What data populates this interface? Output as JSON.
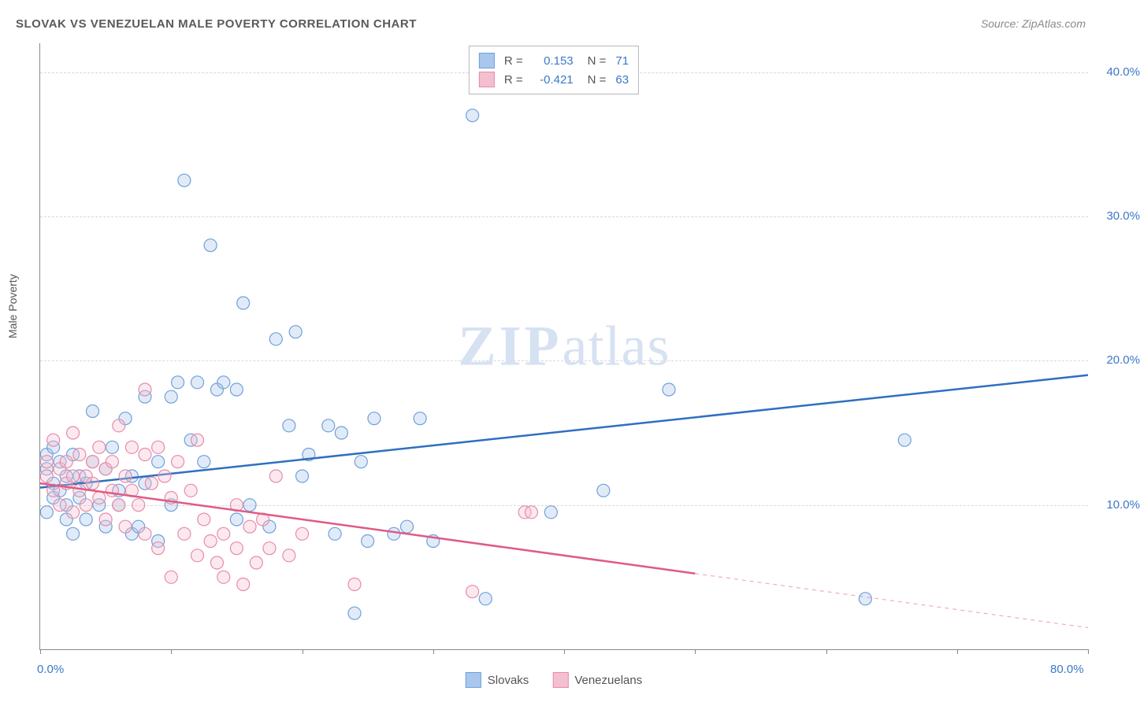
{
  "title": "SLOVAK VS VENEZUELAN MALE POVERTY CORRELATION CHART",
  "source": "Source: ZipAtlas.com",
  "ylabel": "Male Poverty",
  "watermark_zip": "ZIP",
  "watermark_atlas": "atlas",
  "chart": {
    "type": "scatter",
    "background_color": "#ffffff",
    "grid_color": "#d8d8d8",
    "axis_color": "#888888",
    "tick_label_color": "#3b78c9",
    "text_color": "#555555",
    "title_color": "#5a5a5a",
    "title_fontsize": 15,
    "label_fontsize": 14,
    "tick_fontsize": 15,
    "xlim": [
      0,
      80
    ],
    "ylim": [
      0,
      42
    ],
    "x_ticks": [
      0,
      10,
      20,
      30,
      40,
      50,
      60,
      70,
      80
    ],
    "x_tick_labels": {
      "0": "0.0%",
      "80": "80.0%"
    },
    "y_gridlines": [
      10,
      20,
      30,
      40
    ],
    "y_tick_labels": {
      "10": "10.0%",
      "20": "20.0%",
      "30": "30.0%",
      "40": "40.0%"
    },
    "marker_radius": 8,
    "marker_fill_opacity": 0.35,
    "marker_stroke_width": 1.2,
    "trend_line_width": 2.5,
    "series": [
      {
        "name": "Slovaks",
        "color_fill": "#a9c7ec",
        "color_stroke": "#6ea0db",
        "trend_color": "#2f6fc1",
        "r_value": "0.153",
        "n_value": "71",
        "trend": {
          "x1": 0,
          "y1": 11.2,
          "x2": 80,
          "y2": 19.0,
          "solid_to_x": 80
        },
        "points": [
          [
            0.5,
            13.5
          ],
          [
            0.5,
            12.5
          ],
          [
            0.5,
            9.5
          ],
          [
            1,
            14
          ],
          [
            1,
            11.5
          ],
          [
            1,
            10.5
          ],
          [
            1.5,
            11
          ],
          [
            1.5,
            13
          ],
          [
            2,
            10
          ],
          [
            2,
            9
          ],
          [
            2,
            12
          ],
          [
            2.5,
            13.5
          ],
          [
            2.5,
            8
          ],
          [
            3,
            12
          ],
          [
            3,
            10.5
          ],
          [
            3.5,
            11.5
          ],
          [
            3.5,
            9
          ],
          [
            4,
            13
          ],
          [
            4,
            16.5
          ],
          [
            4.5,
            10
          ],
          [
            5,
            12.5
          ],
          [
            5,
            8.5
          ],
          [
            5.5,
            14
          ],
          [
            6,
            11
          ],
          [
            6,
            10
          ],
          [
            6.5,
            16
          ],
          [
            7,
            12
          ],
          [
            7,
            8
          ],
          [
            7.5,
            8.5
          ],
          [
            8,
            11.5
          ],
          [
            8,
            17.5
          ],
          [
            9,
            7.5
          ],
          [
            9,
            13
          ],
          [
            10,
            17.5
          ],
          [
            10,
            10
          ],
          [
            10.5,
            18.5
          ],
          [
            11,
            32.5
          ],
          [
            11.5,
            14.5
          ],
          [
            12,
            18.5
          ],
          [
            12.5,
            13
          ],
          [
            13,
            28
          ],
          [
            13.5,
            18
          ],
          [
            14,
            18.5
          ],
          [
            15,
            9
          ],
          [
            15,
            18
          ],
          [
            15.5,
            24
          ],
          [
            16,
            10
          ],
          [
            17.5,
            8.5
          ],
          [
            18,
            21.5
          ],
          [
            19,
            15.5
          ],
          [
            19.5,
            22
          ],
          [
            20,
            12
          ],
          [
            20.5,
            13.5
          ],
          [
            22,
            15.5
          ],
          [
            22.5,
            8
          ],
          [
            23,
            15
          ],
          [
            24,
            2.5
          ],
          [
            24.5,
            13
          ],
          [
            25,
            7.5
          ],
          [
            25.5,
            16
          ],
          [
            27,
            8
          ],
          [
            28,
            8.5
          ],
          [
            29,
            16
          ],
          [
            30,
            7.5
          ],
          [
            33,
            37
          ],
          [
            34,
            3.5
          ],
          [
            39,
            9.5
          ],
          [
            48,
            18
          ],
          [
            63,
            3.5
          ],
          [
            66,
            14.5
          ],
          [
            43,
            11
          ]
        ]
      },
      {
        "name": "Venezuelans",
        "color_fill": "#f4bfd0",
        "color_stroke": "#e88ba8",
        "trend_color": "#e05a84",
        "r_value": "-0.421",
        "n_value": "63",
        "trend": {
          "x1": 0,
          "y1": 11.5,
          "x2": 80,
          "y2": 1.5,
          "solid_to_x": 50
        },
        "points": [
          [
            0.5,
            12
          ],
          [
            0.5,
            13
          ],
          [
            1,
            14.5
          ],
          [
            1,
            11
          ],
          [
            1.5,
            12.5
          ],
          [
            1.5,
            10
          ],
          [
            2,
            13
          ],
          [
            2,
            11.5
          ],
          [
            2.5,
            15
          ],
          [
            2.5,
            12
          ],
          [
            2.5,
            9.5
          ],
          [
            3,
            13.5
          ],
          [
            3,
            11
          ],
          [
            3.5,
            12
          ],
          [
            3.5,
            10
          ],
          [
            4,
            13
          ],
          [
            4,
            11.5
          ],
          [
            4.5,
            14
          ],
          [
            4.5,
            10.5
          ],
          [
            5,
            12.5
          ],
          [
            5,
            9
          ],
          [
            5.5,
            13
          ],
          [
            5.5,
            11
          ],
          [
            6,
            15.5
          ],
          [
            6,
            10
          ],
          [
            6.5,
            12
          ],
          [
            6.5,
            8.5
          ],
          [
            7,
            14
          ],
          [
            7,
            11
          ],
          [
            7.5,
            10
          ],
          [
            8,
            13.5
          ],
          [
            8,
            8
          ],
          [
            8,
            18
          ],
          [
            8.5,
            11.5
          ],
          [
            9,
            14
          ],
          [
            9,
            7
          ],
          [
            9.5,
            12
          ],
          [
            10,
            10.5
          ],
          [
            10,
            5
          ],
          [
            10.5,
            13
          ],
          [
            11,
            8
          ],
          [
            11.5,
            11
          ],
          [
            12,
            6.5
          ],
          [
            12,
            14.5
          ],
          [
            12.5,
            9
          ],
          [
            13,
            7.5
          ],
          [
            13.5,
            6
          ],
          [
            14,
            8
          ],
          [
            14,
            5
          ],
          [
            15,
            7
          ],
          [
            15,
            10
          ],
          [
            15.5,
            4.5
          ],
          [
            16,
            8.5
          ],
          [
            16.5,
            6
          ],
          [
            17,
            9
          ],
          [
            17.5,
            7
          ],
          [
            18,
            12
          ],
          [
            19,
            6.5
          ],
          [
            20,
            8
          ],
          [
            24,
            4.5
          ],
          [
            33,
            4
          ],
          [
            37,
            9.5
          ],
          [
            37.5,
            9.5
          ]
        ]
      }
    ]
  },
  "legend_bottom": [
    "Slovaks",
    "Venezuelans"
  ]
}
